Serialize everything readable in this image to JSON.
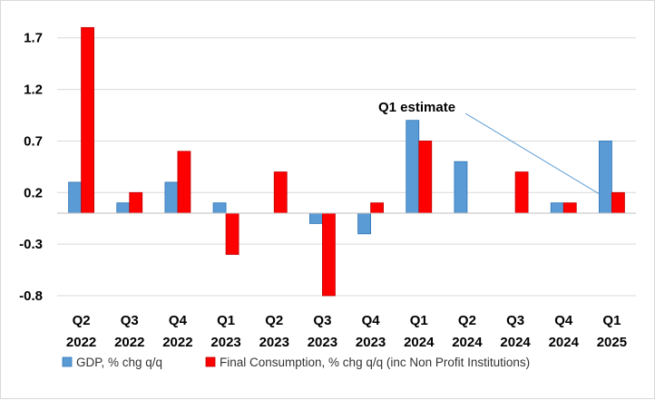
{
  "chart_data": {
    "type": "bar",
    "categories": [
      [
        "Q2",
        "2022"
      ],
      [
        "Q3",
        "2022"
      ],
      [
        "Q4",
        "2022"
      ],
      [
        "Q1",
        "2023"
      ],
      [
        "Q2",
        "2023"
      ],
      [
        "Q3",
        "2023"
      ],
      [
        "Q4",
        "2023"
      ],
      [
        "Q1",
        "2024"
      ],
      [
        "Q2",
        "2024"
      ],
      [
        "Q3",
        "2024"
      ],
      [
        "Q4",
        "2024"
      ],
      [
        "Q1",
        "2025"
      ]
    ],
    "series": [
      {
        "name": "GDP, % chg q/q",
        "color": "#5b9bd5",
        "values": [
          0.3,
          0.1,
          0.3,
          0.1,
          0.0,
          -0.1,
          -0.2,
          0.9,
          0.5,
          0.0,
          0.1,
          0.7
        ]
      },
      {
        "name": "Final Consumption, % chg q/q (inc Non Profit Institutions)",
        "color": "#ff0000",
        "values": [
          1.8,
          0.2,
          0.6,
          -0.4,
          0.4,
          -0.8,
          0.1,
          0.7,
          0.0,
          0.4,
          0.1,
          0.2
        ]
      }
    ],
    "yticks": [
      "1.7",
      "1.2",
      "0.7",
      "0.2",
      "-0.3",
      "-0.8"
    ],
    "ylim": [
      -0.8,
      1.9
    ],
    "annotation": {
      "text": "Q1 estimate",
      "category_index": 11,
      "series_index": 0
    },
    "legend_position": "bottom",
    "grid": true,
    "title": "",
    "xlabel": "",
    "ylabel": ""
  }
}
